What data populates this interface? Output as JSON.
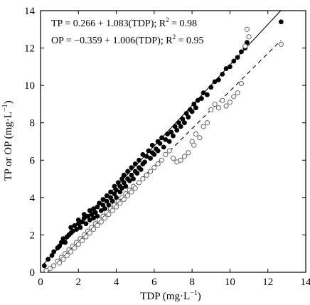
{
  "chart_data": {
    "type": "scatter",
    "xlabel": "TDP (mg·L",
    "xlabel_sup": "−1",
    "xlabel_end": ")",
    "ylabel": "TP or OP (mg·L",
    "ylabel_sup": "−1",
    "ylabel_end": ")",
    "xlim": [
      0,
      14
    ],
    "ylim": [
      0,
      14
    ],
    "xticks": [
      "0",
      "2",
      "4",
      "6",
      "8",
      "10",
      "12",
      "14"
    ],
    "yticks": [
      "0",
      "2",
      "4",
      "6",
      "8",
      "10",
      "12",
      "14"
    ],
    "grid": false,
    "annotations": [
      {
        "text_a": "TP =   0.266 + 1.083(TDP); R",
        "sup": "2",
        "text_b": " = 0.98"
      },
      {
        "text_a": "OP = −0.359 + 1.006(TDP); R",
        "sup": "2",
        "text_b": " = 0.95"
      }
    ],
    "series": [
      {
        "marker": "filled-circle",
        "fit": {
          "intercept": 0.266,
          "slope": 1.083,
          "style": "solid",
          "x_range": [
            0.15,
            12.7
          ]
        },
        "points": [
          [
            0.2,
            0.35
          ],
          [
            0.4,
            0.7
          ],
          [
            0.6,
            0.9
          ],
          [
            0.7,
            1.1
          ],
          [
            0.9,
            1.3
          ],
          [
            1.0,
            1.4
          ],
          [
            1.1,
            1.6
          ],
          [
            1.2,
            1.8
          ],
          [
            1.3,
            1.6
          ],
          [
            1.4,
            1.9
          ],
          [
            1.5,
            2.0
          ],
          [
            1.6,
            2.1
          ],
          [
            1.6,
            2.4
          ],
          [
            1.7,
            2.2
          ],
          [
            1.8,
            2.5
          ],
          [
            1.9,
            2.3
          ],
          [
            2.0,
            2.6
          ],
          [
            2.0,
            2.8
          ],
          [
            2.1,
            2.4
          ],
          [
            2.2,
            2.7
          ],
          [
            2.3,
            2.9
          ],
          [
            2.3,
            3.1
          ],
          [
            2.4,
            2.6
          ],
          [
            2.5,
            3.0
          ],
          [
            2.6,
            2.8
          ],
          [
            2.6,
            3.3
          ],
          [
            2.7,
            3.1
          ],
          [
            2.8,
            3.4
          ],
          [
            2.8,
            2.9
          ],
          [
            2.9,
            3.2
          ],
          [
            3.0,
            3.5
          ],
          [
            3.0,
            3.0
          ],
          [
            3.1,
            3.7
          ],
          [
            3.2,
            3.3
          ],
          [
            3.3,
            3.6
          ],
          [
            3.3,
            3.9
          ],
          [
            3.4,
            3.4
          ],
          [
            3.5,
            3.8
          ],
          [
            3.5,
            4.1
          ],
          [
            3.6,
            3.6
          ],
          [
            3.7,
            4.0
          ],
          [
            3.7,
            4.3
          ],
          [
            3.8,
            3.8
          ],
          [
            3.9,
            4.2
          ],
          [
            3.9,
            4.6
          ],
          [
            4.0,
            4.0
          ],
          [
            4.0,
            4.4
          ],
          [
            4.1,
            4.8
          ],
          [
            4.2,
            4.3
          ],
          [
            4.2,
            4.6
          ],
          [
            4.3,
            5.0
          ],
          [
            4.3,
            4.5
          ],
          [
            4.4,
            4.8
          ],
          [
            4.4,
            5.2
          ],
          [
            4.5,
            4.6
          ],
          [
            4.6,
            5.0
          ],
          [
            4.6,
            5.4
          ],
          [
            4.7,
            4.9
          ],
          [
            4.8,
            5.2
          ],
          [
            4.8,
            5.6
          ],
          [
            4.9,
            5.0
          ],
          [
            5.0,
            5.4
          ],
          [
            5.0,
            5.8
          ],
          [
            5.1,
            5.3
          ],
          [
            5.2,
            5.6
          ],
          [
            5.2,
            6.0
          ],
          [
            5.3,
            5.5
          ],
          [
            5.4,
            5.8
          ],
          [
            5.4,
            6.3
          ],
          [
            5.5,
            5.9
          ],
          [
            5.6,
            6.2
          ],
          [
            5.7,
            6.5
          ],
          [
            5.8,
            6.1
          ],
          [
            5.9,
            6.4
          ],
          [
            5.9,
            6.8
          ],
          [
            6.0,
            6.3
          ],
          [
            6.1,
            6.6
          ],
          [
            6.2,
            7.0
          ],
          [
            6.2,
            6.5
          ],
          [
            6.3,
            6.9
          ],
          [
            6.4,
            7.2
          ],
          [
            6.5,
            6.7
          ],
          [
            6.6,
            7.1
          ],
          [
            6.7,
            7.4
          ],
          [
            6.8,
            7.0
          ],
          [
            6.9,
            7.5
          ],
          [
            7.0,
            7.3
          ],
          [
            7.1,
            7.8
          ],
          [
            7.2,
            7.6
          ],
          [
            7.3,
            8.0
          ],
          [
            7.4,
            7.8
          ],
          [
            7.5,
            8.2
          ],
          [
            7.6,
            8.0
          ],
          [
            7.7,
            8.5
          ],
          [
            7.8,
            8.3
          ],
          [
            7.9,
            8.7
          ],
          [
            8.0,
            8.6
          ],
          [
            8.1,
            9.0
          ],
          [
            8.2,
            8.8
          ],
          [
            8.3,
            9.2
          ],
          [
            8.5,
            9.3
          ],
          [
            8.6,
            9.6
          ],
          [
            8.8,
            9.5
          ],
          [
            9.0,
            9.9
          ],
          [
            9.2,
            10.2
          ],
          [
            9.4,
            10.3
          ],
          [
            9.6,
            10.6
          ],
          [
            9.8,
            10.9
          ],
          [
            10.0,
            11.0
          ],
          [
            10.2,
            11.3
          ],
          [
            10.4,
            11.5
          ],
          [
            10.6,
            11.8
          ],
          [
            10.8,
            12.0
          ],
          [
            10.9,
            12.3
          ],
          [
            12.7,
            13.4
          ]
        ]
      },
      {
        "marker": "open-circle",
        "fit": {
          "intercept": -0.359,
          "slope": 1.006,
          "style": "dashed",
          "x_range": [
            0.36,
            12.7
          ]
        },
        "points": [
          [
            0.3,
            0.1
          ],
          [
            0.5,
            0.2
          ],
          [
            0.7,
            0.35
          ],
          [
            0.9,
            0.6
          ],
          [
            1.0,
            0.5
          ],
          [
            1.1,
            0.8
          ],
          [
            1.2,
            0.7
          ],
          [
            1.3,
            1.0
          ],
          [
            1.4,
            0.9
          ],
          [
            1.5,
            1.2
          ],
          [
            1.6,
            1.1
          ],
          [
            1.7,
            1.4
          ],
          [
            1.8,
            1.3
          ],
          [
            1.9,
            1.6
          ],
          [
            2.0,
            1.5
          ],
          [
            2.1,
            1.8
          ],
          [
            2.2,
            1.7
          ],
          [
            2.3,
            2.0
          ],
          [
            2.4,
            1.9
          ],
          [
            2.5,
            2.2
          ],
          [
            2.6,
            2.1
          ],
          [
            2.7,
            2.4
          ],
          [
            2.8,
            2.3
          ],
          [
            2.9,
            2.6
          ],
          [
            3.0,
            2.5
          ],
          [
            3.1,
            2.8
          ],
          [
            3.2,
            2.7
          ],
          [
            3.3,
            3.0
          ],
          [
            3.4,
            2.9
          ],
          [
            3.5,
            3.2
          ],
          [
            3.6,
            3.1
          ],
          [
            3.7,
            3.4
          ],
          [
            3.8,
            3.3
          ],
          [
            3.9,
            3.6
          ],
          [
            4.0,
            3.5
          ],
          [
            4.1,
            3.8
          ],
          [
            4.2,
            3.7
          ],
          [
            4.3,
            4.0
          ],
          [
            4.4,
            3.9
          ],
          [
            4.5,
            4.2
          ],
          [
            4.6,
            4.1
          ],
          [
            4.7,
            4.4
          ],
          [
            4.8,
            4.3
          ],
          [
            4.9,
            4.6
          ],
          [
            5.0,
            4.5
          ],
          [
            5.2,
            4.8
          ],
          [
            5.4,
            5.0
          ],
          [
            5.6,
            5.2
          ],
          [
            5.8,
            5.4
          ],
          [
            6.0,
            5.6
          ],
          [
            6.2,
            5.8
          ],
          [
            6.4,
            6.0
          ],
          [
            6.6,
            6.3
          ],
          [
            6.8,
            6.5
          ],
          [
            7.0,
            6.1
          ],
          [
            7.2,
            5.9
          ],
          [
            7.4,
            6.0
          ],
          [
            7.6,
            6.2
          ],
          [
            7.8,
            6.4
          ],
          [
            8.0,
            7.0
          ],
          [
            8.1,
            6.8
          ],
          [
            8.2,
            7.4
          ],
          [
            8.4,
            7.2
          ],
          [
            8.6,
            7.8
          ],
          [
            8.8,
            8.0
          ],
          [
            9.0,
            8.7
          ],
          [
            9.2,
            9.0
          ],
          [
            9.4,
            8.8
          ],
          [
            9.6,
            9.2
          ],
          [
            9.8,
            8.9
          ],
          [
            10.0,
            9.1
          ],
          [
            10.2,
            9.4
          ],
          [
            10.4,
            9.6
          ],
          [
            10.6,
            10.1
          ],
          [
            10.8,
            12.1
          ],
          [
            11.0,
            12.6
          ],
          [
            10.9,
            13.0
          ],
          [
            12.7,
            12.2
          ]
        ]
      }
    ]
  }
}
